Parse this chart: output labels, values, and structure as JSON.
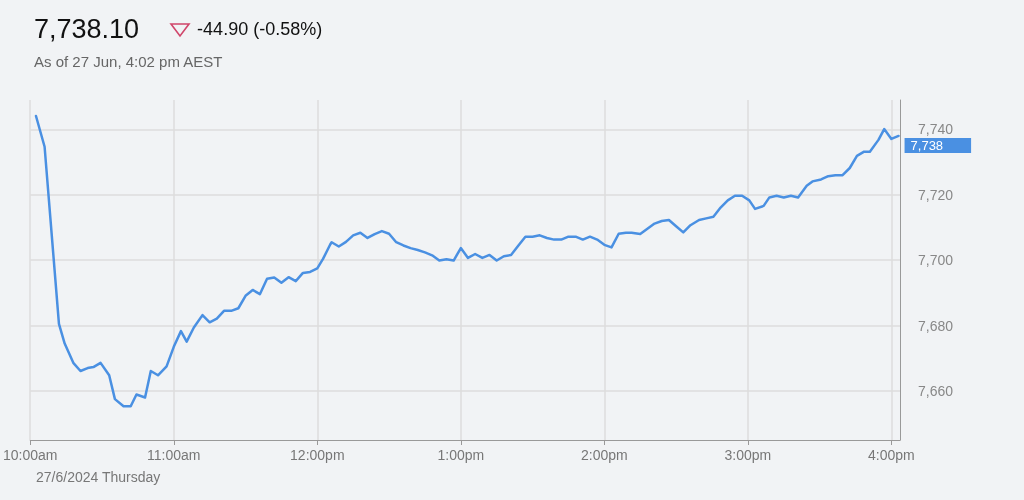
{
  "chart_data": {
    "type": "line",
    "title": "7,738.10",
    "subtitle": "-44.90 (-0.58%)",
    "annotations": [
      "As of 27 Jun, 4:02 pm AEST",
      "27/6/2024 Thursday"
    ],
    "x": [
      10.04,
      10.1,
      10.2,
      10.24,
      10.3,
      10.35,
      10.4,
      10.44,
      10.49,
      10.55,
      10.59,
      10.65,
      10.7,
      10.74,
      10.8,
      10.84,
      10.89,
      10.95,
      11.0,
      11.05,
      11.09,
      11.14,
      11.2,
      11.25,
      11.3,
      11.35,
      11.4,
      11.45,
      11.5,
      11.55,
      11.6,
      11.65,
      11.7,
      11.75,
      11.8,
      11.85,
      11.9,
      11.95,
      12.0,
      12.04,
      12.09,
      12.1,
      12.15,
      12.2,
      12.25,
      12.3,
      12.35,
      12.4,
      12.45,
      12.5,
      12.55,
      12.6,
      12.65,
      12.7,
      12.75,
      12.8,
      12.85,
      12.9,
      12.95,
      13.0,
      13.05,
      13.1,
      13.15,
      13.2,
      13.25,
      13.3,
      13.35,
      13.4,
      13.45,
      13.5,
      13.55,
      13.6,
      13.65,
      13.7,
      13.75,
      13.8,
      13.85,
      13.9,
      13.95,
      14.0,
      14.05,
      14.1,
      14.15,
      14.19,
      14.25,
      14.3,
      14.35,
      14.4,
      14.45,
      14.5,
      14.55,
      14.6,
      14.66,
      14.71,
      14.76,
      14.81,
      14.86,
      14.91,
      14.96,
      15.01,
      15.05,
      15.11,
      15.15,
      15.2,
      15.25,
      15.3,
      15.35,
      15.41,
      15.45,
      15.51,
      15.56,
      15.61,
      15.66,
      15.71,
      15.76,
      15.81,
      15.85,
      15.91,
      15.95,
      16.0,
      16.05
    ],
    "series": [
      {
        "color": "#4a90e2",
        "values": [
          7744.1,
          7734.7,
          7680.5,
          7674.5,
          7668.6,
          7666.1,
          7667.0,
          7667.3,
          7668.6,
          7664.8,
          7657.5,
          7655.3,
          7655.3,
          7658.9,
          7658.0,
          7666.1,
          7664.8,
          7667.5,
          7673.5,
          7678.3,
          7675.1,
          7679.4,
          7683.2,
          7681.0,
          7682.1,
          7684.5,
          7684.5,
          7685.3,
          7689.1,
          7690.9,
          7689.6,
          7694.3,
          7694.7,
          7693.1,
          7694.8,
          7693.6,
          7696.1,
          7696.4,
          7697.5,
          7700.4,
          7704.8,
          7705.5,
          7704.2,
          7705.6,
          7707.6,
          7708.4,
          7706.8,
          7708.0,
          7708.9,
          7708.1,
          7705.5,
          7704.5,
          7703.7,
          7703.1,
          7702.4,
          7701.5,
          7699.9,
          7700.3,
          7699.9,
          7703.7,
          7700.7,
          7701.9,
          7700.7,
          7701.6,
          7699.9,
          7701.2,
          7701.6,
          7704.4,
          7707.2,
          7707.2,
          7707.6,
          7706.8,
          7706.3,
          7706.3,
          7707.2,
          7707.2,
          7706.3,
          7707.2,
          7706.3,
          7704.7,
          7703.9,
          7708.1,
          7708.4,
          7708.4,
          7708.0,
          7709.6,
          7711.2,
          7712.0,
          7712.3,
          7710.4,
          7708.5,
          7710.7,
          7712.3,
          7712.8,
          7713.3,
          7716.1,
          7718.3,
          7719.7,
          7719.7,
          7718.3,
          7715.7,
          7716.6,
          7719.2,
          7719.7,
          7719.2,
          7719.7,
          7719.2,
          7722.8,
          7724.1,
          7724.7,
          7725.7,
          7726.0,
          7726.0,
          7728.2,
          7731.9,
          7733.2,
          7733.2,
          7736.8,
          7740.1,
          7737.1,
          7738
        ],
        "value_labels": [
          null,
          null,
          null,
          null,
          null,
          null,
          null,
          null,
          null,
          null,
          null,
          null,
          null,
          null,
          null,
          null,
          null,
          null,
          null,
          null,
          null,
          null,
          null,
          null,
          null,
          null,
          null,
          null,
          null,
          null,
          null,
          null,
          null,
          null,
          null,
          null,
          null,
          null,
          null,
          null,
          null,
          null,
          null,
          null,
          null,
          null,
          null,
          null,
          null,
          null,
          null,
          null,
          null,
          null,
          null,
          null,
          null,
          null,
          null,
          null,
          null,
          null,
          null,
          null,
          null,
          null,
          null,
          null,
          null,
          null,
          null,
          null,
          null,
          null,
          null,
          null,
          null,
          null,
          null,
          null,
          null,
          null,
          null,
          null,
          null,
          null,
          null,
          null,
          null,
          null,
          null,
          null,
          null,
          null,
          null,
          null,
          null,
          null,
          null,
          null,
          null,
          null,
          null,
          null,
          null,
          null,
          null,
          null,
          null,
          null,
          null,
          null,
          null,
          null,
          null,
          null,
          null,
          null,
          null,
          null,
          "7,738"
        ]
      }
    ],
    "xlim": [
      10,
      16.06
    ],
    "xticks": [
      {
        "value": 10,
        "label": "10:00am"
      },
      {
        "value": 11,
        "label": "11:00am"
      },
      {
        "value": 12,
        "label": "12:00pm"
      },
      {
        "value": 13,
        "label": "1:00pm"
      },
      {
        "value": 14,
        "label": "2:00pm"
      },
      {
        "value": 15,
        "label": "3:00pm"
      },
      {
        "value": 16,
        "label": "4:00pm"
      }
    ],
    "ylim": [
      7645,
      7749
    ],
    "yticks": [
      {
        "value": 7660,
        "label": "7,660"
      },
      {
        "value": 7680,
        "label": "7,680"
      },
      {
        "value": 7700,
        "label": "7,700"
      },
      {
        "value": 7720,
        "label": "7,720"
      },
      {
        "value": 7740,
        "label": "7,740"
      }
    ],
    "grid": true,
    "marker": "none",
    "line_style": "solid"
  }
}
